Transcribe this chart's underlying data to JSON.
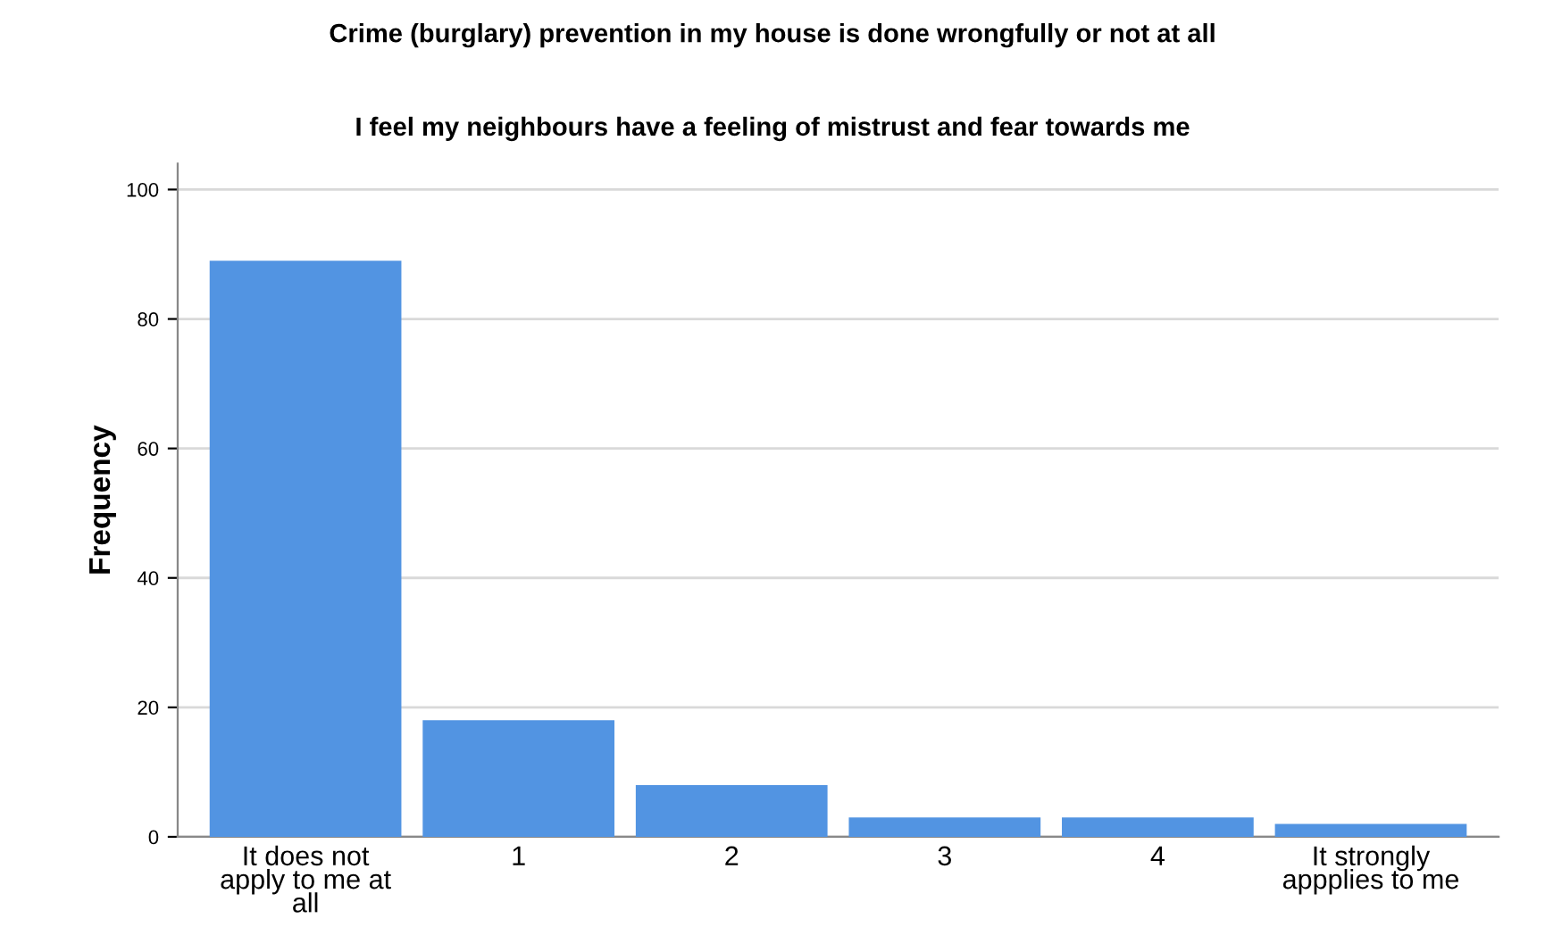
{
  "chart_data": {
    "type": "bar",
    "title": "Crime (burglary) prevention in my house is done wrongfully or not at all",
    "subtitle": "I feel my neighbours have a feeling of mistrust and fear towards me",
    "ylabel": "Frequency",
    "categories": [
      "It does not apply to me at all",
      "1",
      "2",
      "3",
      "4",
      "It strongly appplies to me"
    ],
    "values": [
      89,
      18,
      8,
      3,
      3,
      2
    ],
    "color": "#5294e2",
    "ylim": [
      0,
      104
    ],
    "yticks": [
      0,
      20,
      40,
      60,
      80,
      100
    ],
    "grid": "y"
  }
}
